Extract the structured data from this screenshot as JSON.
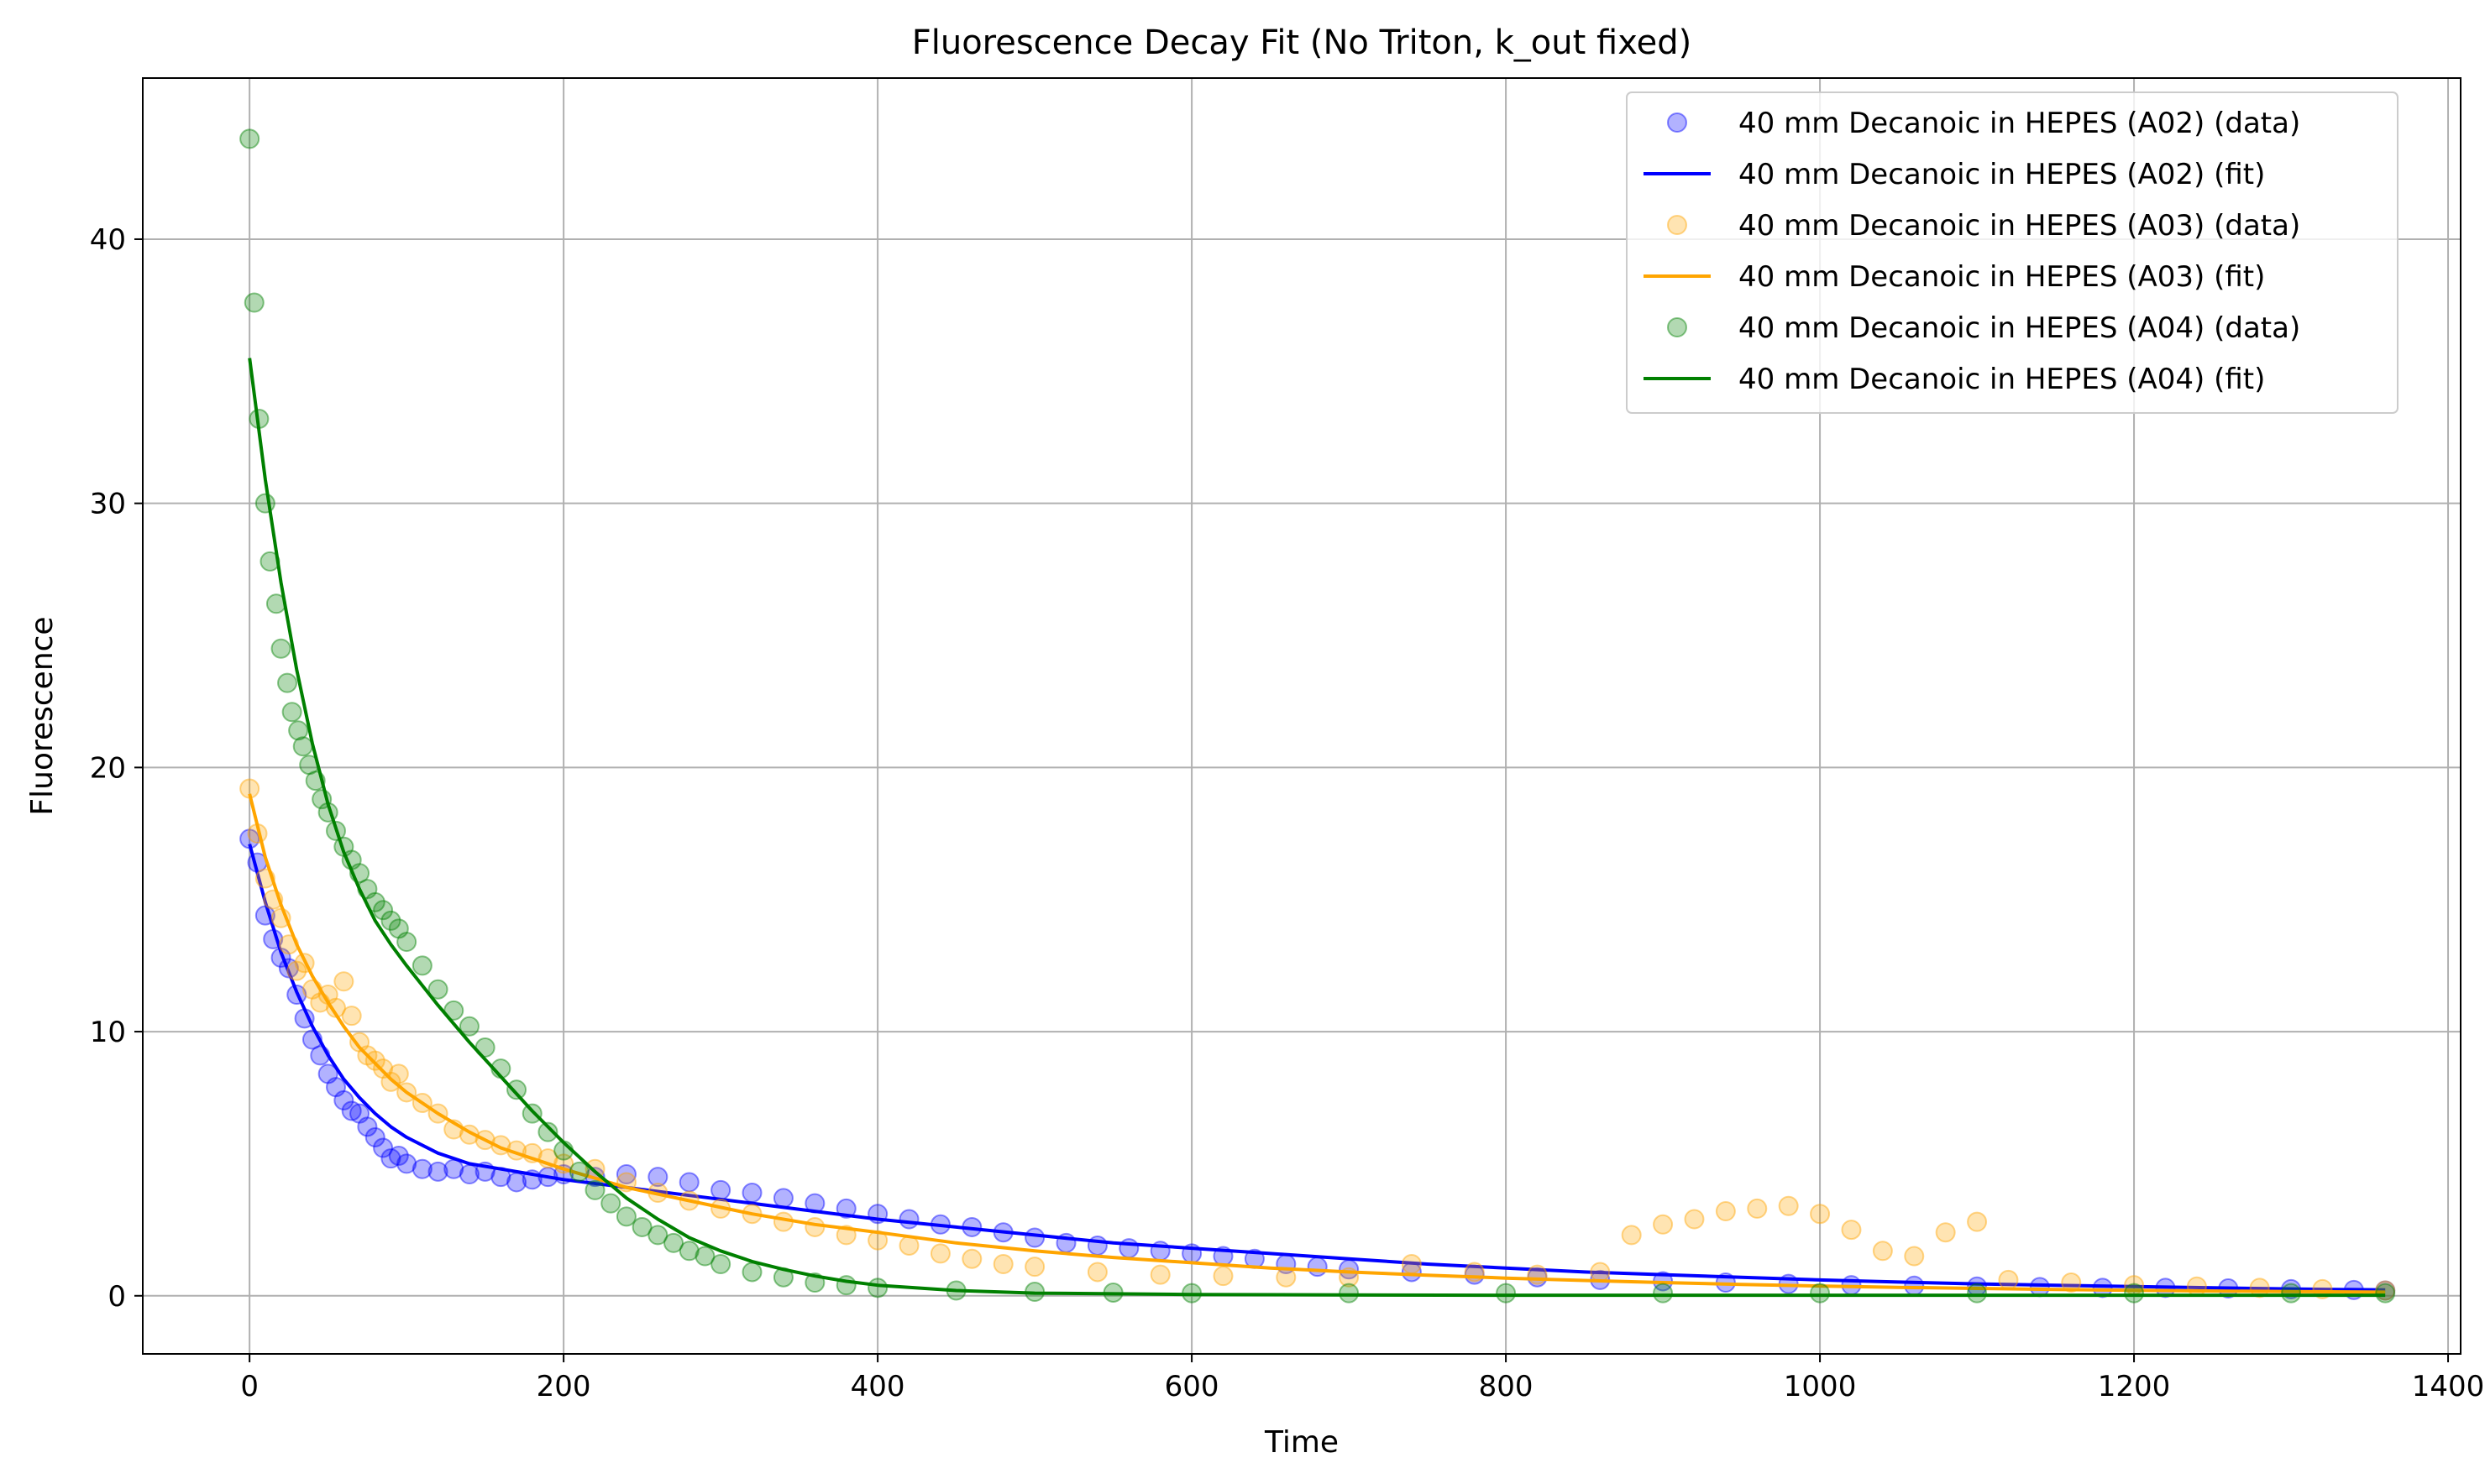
{
  "chart_data": {
    "type": "scatter",
    "title": "Fluorescence Decay Fit (No Triton, k_out fixed)",
    "xlabel": "Time",
    "ylabel": "Fluorescence",
    "xlim": [
      -68,
      1408
    ],
    "ylim": [
      -2.2,
      46.1
    ],
    "xticks": [
      0,
      200,
      400,
      600,
      800,
      1000,
      1200,
      1400
    ],
    "yticks": [
      0,
      10,
      20,
      30,
      40
    ],
    "grid": true,
    "legend_position": "top-right",
    "series": [
      {
        "name": "40 mm Decanoic in HEPES (A02) (data)",
        "kind": "scatter",
        "color": "#0000ff",
        "x": [
          0,
          5,
          10,
          15,
          20,
          25,
          30,
          35,
          40,
          45,
          50,
          55,
          60,
          65,
          70,
          75,
          80,
          85,
          90,
          95,
          100,
          110,
          120,
          130,
          140,
          150,
          160,
          170,
          180,
          190,
          200,
          220,
          240,
          260,
          280,
          300,
          320,
          340,
          360,
          380,
          400,
          420,
          440,
          460,
          480,
          500,
          520,
          540,
          560,
          580,
          600,
          620,
          640,
          660,
          680,
          700,
          740,
          780,
          820,
          860,
          900,
          940,
          980,
          1020,
          1060,
          1100,
          1140,
          1180,
          1220,
          1260,
          1300,
          1340,
          1360
        ],
        "y": [
          17.3,
          16.4,
          14.4,
          13.5,
          12.8,
          12.4,
          11.4,
          10.5,
          9.7,
          9.1,
          8.4,
          7.9,
          7.4,
          7.0,
          6.9,
          6.4,
          6.0,
          5.6,
          5.2,
          5.3,
          5.0,
          4.8,
          4.7,
          4.8,
          4.6,
          4.7,
          4.5,
          4.3,
          4.4,
          4.5,
          4.6,
          4.5,
          4.6,
          4.5,
          4.3,
          4.0,
          3.9,
          3.7,
          3.5,
          3.3,
          3.1,
          2.9,
          2.7,
          2.6,
          2.4,
          2.2,
          2.0,
          1.9,
          1.8,
          1.7,
          1.6,
          1.5,
          1.4,
          1.2,
          1.1,
          1.0,
          0.9,
          0.8,
          0.7,
          0.6,
          0.55,
          0.5,
          0.45,
          0.4,
          0.38,
          0.35,
          0.33,
          0.3,
          0.3,
          0.28,
          0.25,
          0.22,
          0.2
        ]
      },
      {
        "name": "40 mm Decanoic in HEPES (A02) (fit)",
        "kind": "line",
        "color": "#0000ff",
        "x": [
          0,
          10,
          20,
          30,
          40,
          50,
          60,
          70,
          80,
          90,
          100,
          120,
          140,
          160,
          180,
          200,
          240,
          280,
          320,
          360,
          400,
          450,
          500,
          550,
          600,
          650,
          700,
          750,
          800,
          850,
          900,
          950,
          1000,
          1050,
          1100,
          1150,
          1200,
          1250,
          1300,
          1360
        ],
        "y": [
          17.1,
          14.9,
          13.0,
          11.5,
          10.2,
          9.1,
          8.2,
          7.5,
          6.9,
          6.4,
          6.0,
          5.4,
          5.0,
          4.8,
          4.6,
          4.4,
          4.1,
          3.8,
          3.5,
          3.2,
          2.9,
          2.6,
          2.3,
          2.0,
          1.8,
          1.6,
          1.4,
          1.2,
          1.05,
          0.9,
          0.8,
          0.7,
          0.6,
          0.52,
          0.45,
          0.4,
          0.35,
          0.3,
          0.26,
          0.22
        ]
      },
      {
        "name": "40 mm Decanoic in HEPES (A03) (data)",
        "kind": "scatter",
        "color": "#ffa500",
        "x": [
          0,
          5,
          10,
          15,
          20,
          25,
          30,
          35,
          40,
          45,
          50,
          55,
          60,
          65,
          70,
          75,
          80,
          85,
          90,
          95,
          100,
          110,
          120,
          130,
          140,
          150,
          160,
          170,
          180,
          190,
          200,
          220,
          240,
          260,
          280,
          300,
          320,
          340,
          360,
          380,
          400,
          420,
          440,
          460,
          480,
          500,
          540,
          580,
          620,
          660,
          700,
          740,
          780,
          820,
          860,
          880,
          900,
          920,
          940,
          960,
          980,
          1000,
          1020,
          1040,
          1060,
          1080,
          1100,
          1120,
          1160,
          1200,
          1240,
          1280,
          1320,
          1360
        ],
        "y": [
          19.2,
          17.5,
          15.8,
          15.0,
          14.3,
          13.3,
          12.3,
          12.6,
          11.6,
          11.1,
          11.4,
          10.9,
          11.9,
          10.6,
          9.6,
          9.1,
          8.9,
          8.6,
          8.1,
          8.4,
          7.7,
          7.3,
          6.9,
          6.3,
          6.1,
          5.9,
          5.7,
          5.5,
          5.4,
          5.2,
          5.0,
          4.8,
          4.3,
          3.9,
          3.6,
          3.3,
          3.1,
          2.8,
          2.6,
          2.3,
          2.1,
          1.9,
          1.6,
          1.4,
          1.2,
          1.1,
          0.9,
          0.8,
          0.75,
          0.7,
          0.7,
          1.2,
          0.9,
          0.8,
          0.9,
          2.3,
          2.7,
          2.9,
          3.2,
          3.3,
          3.4,
          3.1,
          2.5,
          1.7,
          1.5,
          2.4,
          2.8,
          0.6,
          0.5,
          0.4,
          0.35,
          0.3,
          0.25,
          0.2
        ]
      },
      {
        "name": "40 mm Decanoic in HEPES (A03) (fit)",
        "kind": "line",
        "color": "#ffa500",
        "x": [
          0,
          10,
          20,
          30,
          40,
          50,
          60,
          70,
          80,
          90,
          100,
          120,
          140,
          160,
          180,
          200,
          240,
          280,
          320,
          360,
          400,
          450,
          500,
          550,
          600,
          650,
          700,
          750,
          800,
          850,
          900,
          950,
          1000,
          1050,
          1100,
          1150,
          1200,
          1250,
          1300,
          1360
        ],
        "y": [
          19.0,
          16.6,
          14.8,
          13.3,
          12.1,
          11.1,
          10.2,
          9.4,
          8.8,
          8.2,
          7.7,
          6.9,
          6.2,
          5.6,
          5.2,
          4.8,
          4.1,
          3.6,
          3.1,
          2.7,
          2.4,
          2.0,
          1.7,
          1.45,
          1.25,
          1.05,
          0.9,
          0.78,
          0.67,
          0.58,
          0.5,
          0.43,
          0.37,
          0.32,
          0.28,
          0.24,
          0.21,
          0.18,
          0.16,
          0.14
        ]
      },
      {
        "name": "40 mm Decanoic in HEPES (A04) (data)",
        "kind": "scatter",
        "color": "#008000",
        "x": [
          0,
          3,
          6,
          10,
          13,
          17,
          20,
          24,
          27,
          31,
          34,
          38,
          42,
          46,
          50,
          55,
          60,
          65,
          70,
          75,
          80,
          85,
          90,
          95,
          100,
          110,
          120,
          130,
          140,
          150,
          160,
          170,
          180,
          190,
          200,
          210,
          220,
          230,
          240,
          250,
          260,
          270,
          280,
          290,
          300,
          320,
          340,
          360,
          380,
          400,
          450,
          500,
          550,
          600,
          700,
          800,
          900,
          1000,
          1100,
          1200,
          1300,
          1360
        ],
        "y": [
          43.8,
          37.6,
          33.2,
          30.0,
          27.8,
          26.2,
          24.5,
          23.2,
          22.1,
          21.4,
          20.8,
          20.1,
          19.5,
          18.8,
          18.3,
          17.6,
          17.0,
          16.5,
          16.0,
          15.4,
          14.9,
          14.6,
          14.2,
          13.9,
          13.4,
          12.5,
          11.6,
          10.8,
          10.2,
          9.4,
          8.6,
          7.8,
          6.9,
          6.2,
          5.5,
          4.7,
          4.0,
          3.5,
          3.0,
          2.6,
          2.3,
          2.0,
          1.7,
          1.5,
          1.2,
          0.9,
          0.7,
          0.5,
          0.4,
          0.3,
          0.2,
          0.15,
          0.12,
          0.1,
          0.1,
          0.1,
          0.1,
          0.1,
          0.1,
          0.1,
          0.1,
          0.1
        ]
      },
      {
        "name": "40 mm Decanoic in HEPES (A04) (fit)",
        "kind": "line",
        "color": "#008000",
        "x": [
          0,
          10,
          20,
          30,
          40,
          50,
          60,
          70,
          80,
          90,
          100,
          120,
          140,
          160,
          180,
          200,
          220,
          240,
          260,
          280,
          300,
          320,
          340,
          360,
          380,
          400,
          450,
          500,
          600,
          700,
          800,
          900,
          1000,
          1100,
          1200,
          1300,
          1360
        ],
        "y": [
          35.5,
          30.9,
          27.0,
          23.7,
          20.9,
          18.6,
          16.8,
          15.4,
          14.2,
          13.3,
          12.5,
          11.0,
          9.6,
          8.3,
          7.0,
          5.8,
          4.7,
          3.7,
          2.9,
          2.2,
          1.7,
          1.3,
          1.0,
          0.75,
          0.55,
          0.4,
          0.2,
          0.1,
          0.05,
          0.03,
          0.02,
          0.02,
          0.02,
          0.02,
          0.02,
          0.02,
          0.02
        ]
      }
    ]
  }
}
